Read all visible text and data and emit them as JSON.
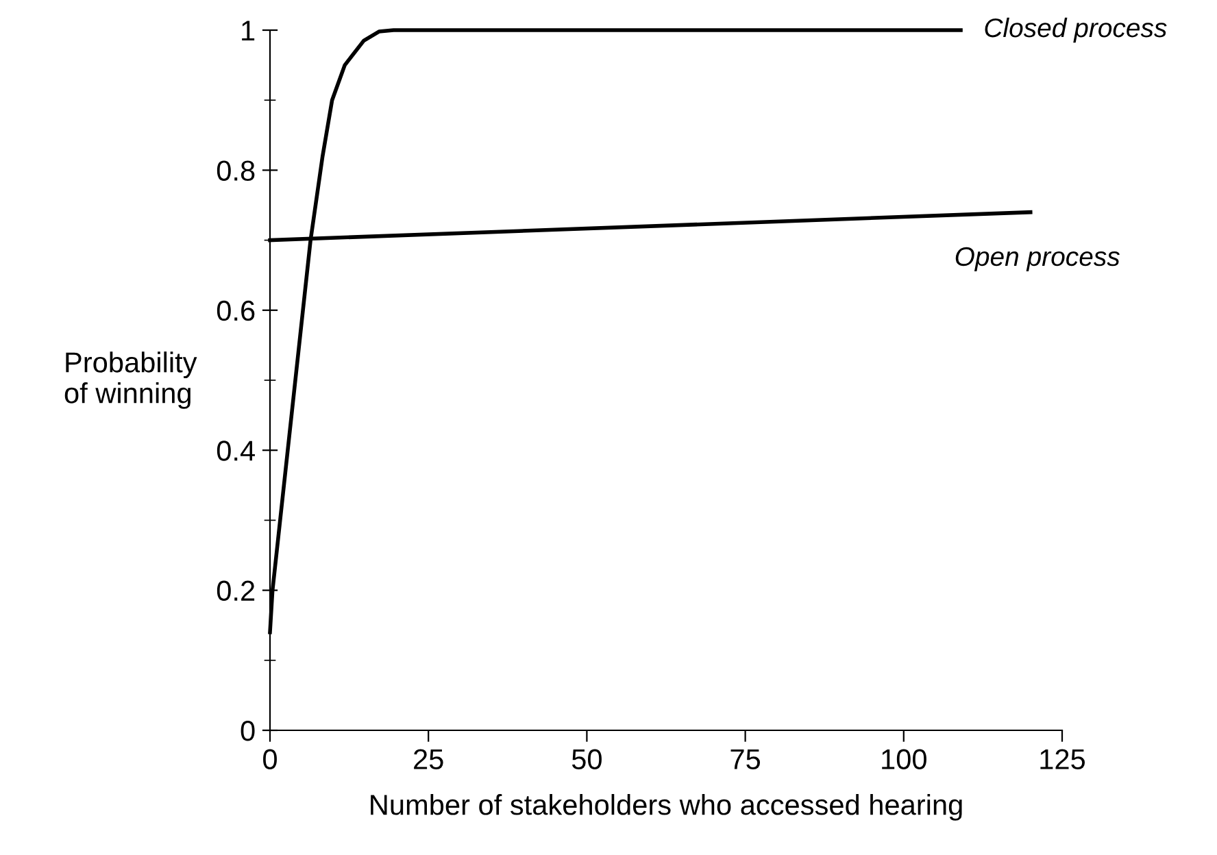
{
  "chart_data": {
    "type": "line",
    "xlabel": "Number of stakeholders who accessed hearing",
    "ylabel": "Probability\nof winning",
    "series": [
      {
        "name": "Closed process",
        "color": "#000000",
        "x": [
          0,
          0.4,
          4,
          6.4,
          8.3,
          9.8,
          11.8,
          14.8,
          17.2,
          19.5,
          109
        ],
        "values": [
          0.14,
          0.2,
          0.5,
          0.7,
          0.82,
          0.9,
          0.95,
          0.985,
          0.998,
          1.0,
          1.0
        ]
      },
      {
        "name": "Open process",
        "color": "#000000",
        "x": [
          0,
          120
        ],
        "values": [
          0.7,
          0.74
        ]
      }
    ],
    "xlim": [
      0,
      125
    ],
    "xticks": [
      0,
      25,
      50,
      75,
      100,
      125
    ],
    "ylim": [
      0,
      1
    ],
    "yticks": [
      0,
      0.2,
      0.4,
      0.6,
      0.8,
      1
    ],
    "grid": false,
    "legend": false,
    "marker": "none",
    "line_style": "solid"
  }
}
